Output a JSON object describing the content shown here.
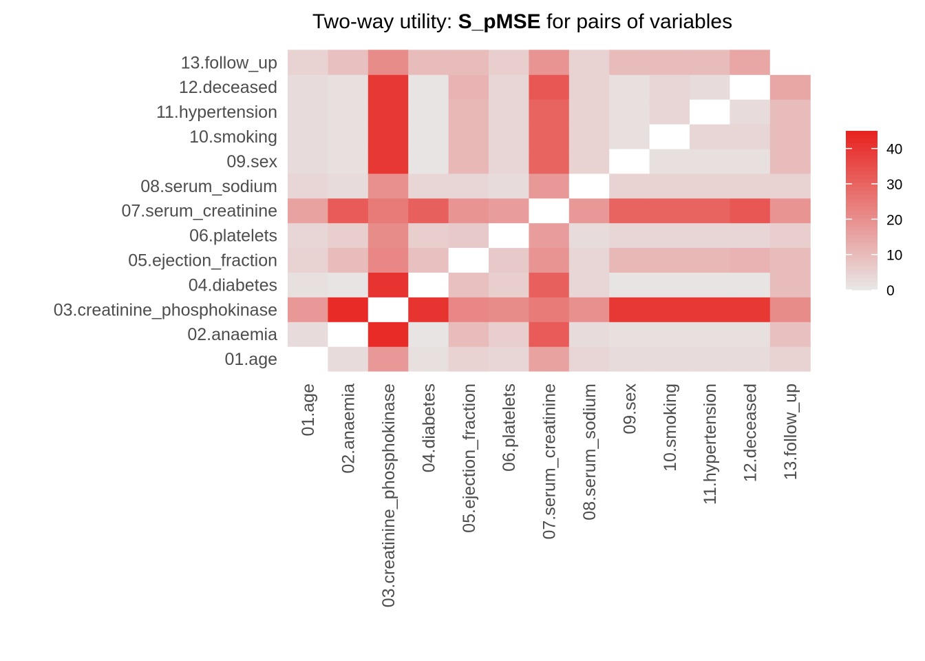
{
  "chart_data": {
    "type": "heatmap",
    "title_prefix": "Two-way utility: ",
    "title_metric": "S_pMSE",
    "title_suffix": " for pairs of variables",
    "variables": [
      "01.age",
      "02.anaemia",
      "03.creatinine_phosphokinase",
      "04.diabetes",
      "05.ejection_fraction",
      "06.platelets",
      "07.serum_creatinine",
      "08.serum_sodium",
      "09.sex",
      "10.smoking",
      "11.hypertension",
      "12.deceased",
      "13.follow_up"
    ],
    "matrix": [
      [
        null,
        3,
        18,
        2,
        5,
        4,
        16,
        4,
        3,
        3,
        3,
        3,
        5
      ],
      [
        3,
        null,
        43,
        1,
        10,
        6,
        32,
        3,
        2,
        2,
        2,
        2,
        9
      ],
      [
        18,
        43,
        null,
        41,
        22,
        21,
        25,
        20,
        40,
        40,
        40,
        40,
        21
      ],
      [
        2,
        1,
        41,
        null,
        9,
        6,
        31,
        4,
        1,
        1,
        1,
        1,
        10
      ],
      [
        5,
        10,
        22,
        9,
        null,
        7,
        19,
        4,
        11,
        11,
        11,
        12,
        10
      ],
      [
        4,
        6,
        21,
        6,
        7,
        null,
        17,
        3,
        4,
        4,
        4,
        4,
        6
      ],
      [
        16,
        32,
        25,
        31,
        19,
        17,
        null,
        18,
        30,
        30,
        30,
        33,
        19
      ],
      [
        4,
        3,
        20,
        4,
        4,
        3,
        18,
        null,
        5,
        5,
        5,
        5,
        5
      ],
      [
        3,
        2,
        40,
        1,
        11,
        4,
        30,
        5,
        null,
        2,
        2,
        2,
        10
      ],
      [
        3,
        2,
        40,
        1,
        11,
        4,
        30,
        5,
        2,
        null,
        4,
        4,
        10
      ],
      [
        3,
        2,
        40,
        1,
        11,
        4,
        30,
        5,
        2,
        4,
        null,
        3,
        10
      ],
      [
        3,
        2,
        40,
        1,
        12,
        4,
        33,
        5,
        2,
        4,
        3,
        null,
        15
      ],
      [
        5,
        9,
        21,
        10,
        10,
        6,
        19,
        5,
        10,
        10,
        10,
        15,
        null
      ]
    ],
    "diagonal_note": "",
    "color_scale": {
      "low": "#e8e8e8",
      "high": "#e8221e",
      "min": 0,
      "max": 45
    },
    "legend": {
      "position": "right",
      "ticks": [
        0,
        10,
        20,
        30,
        40
      ]
    },
    "grid": false
  }
}
